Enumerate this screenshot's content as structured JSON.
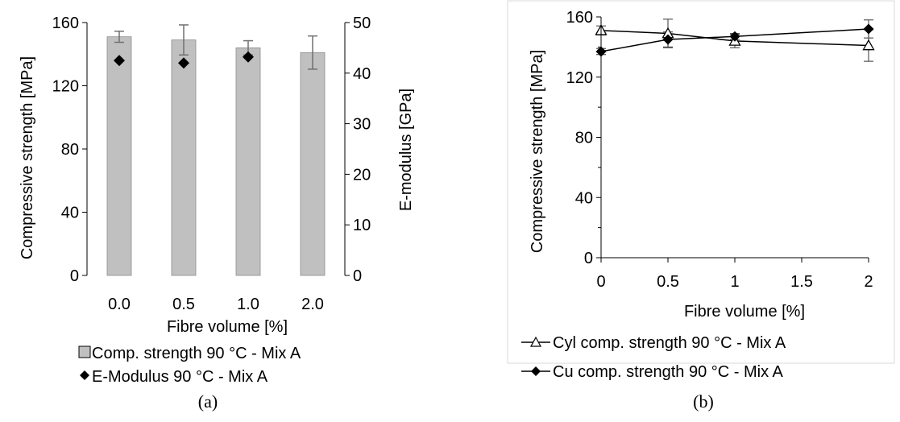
{
  "chart_data": [
    {
      "panel_caption": "(a)",
      "type": "bar",
      "categories": [
        "0.0",
        "0.5",
        "1.0",
        "2.0"
      ],
      "xlabel": "Fibre volume [%]",
      "ylabel": "Compressive strength [MPa]",
      "y2label": "E-modulus [GPa]",
      "ylim": [
        0,
        160
      ],
      "y2lim": [
        0,
        50
      ],
      "yticks": [
        "0",
        "40",
        "80",
        "120",
        "160"
      ],
      "y2ticks": [
        "0",
        "10",
        "20",
        "30",
        "40",
        "50"
      ],
      "grid": false,
      "legend_position": "bottom",
      "series": [
        {
          "name": "Comp. strength 90 °C - Mix A",
          "kind": "bar",
          "axis": "left",
          "color": "#c0c0c0",
          "values": [
            151,
            149,
            144,
            141
          ],
          "error": [
            3.5,
            9.5,
            4.5,
            10.5
          ]
        },
        {
          "name": "E-Modulus 90 °C - Mix A",
          "kind": "marker",
          "marker": "diamond",
          "axis": "right",
          "color": "#000000",
          "values": [
            42.5,
            42.0,
            43.2,
            null
          ]
        }
      ]
    },
    {
      "panel_caption": "(b)",
      "type": "line",
      "x": [
        0,
        0.5,
        1,
        2
      ],
      "xticks": [
        "0",
        "0.5",
        "1",
        "1.5",
        "2"
      ],
      "xlim": [
        0,
        2
      ],
      "xlabel": "Fibre volume [%]",
      "ylabel": "Compressive strength [MPa]",
      "ylim": [
        0,
        160
      ],
      "yticks": [
        "0",
        "40",
        "80",
        "120",
        "160"
      ],
      "grid": false,
      "legend_position": "bottom",
      "series": [
        {
          "name": "Cyl comp. strength 90 °C - Mix A",
          "marker": "open-triangle",
          "color": "#000000",
          "values": [
            151,
            149,
            144,
            141
          ],
          "error": [
            3,
            9.5,
            4.5,
            10.5
          ]
        },
        {
          "name": "Cu comp. strength 90 °C - Mix A",
          "marker": "diamond",
          "color": "#000000",
          "values": [
            137,
            145,
            147,
            152
          ],
          "error": [
            2,
            5,
            2,
            6
          ]
        }
      ]
    }
  ]
}
